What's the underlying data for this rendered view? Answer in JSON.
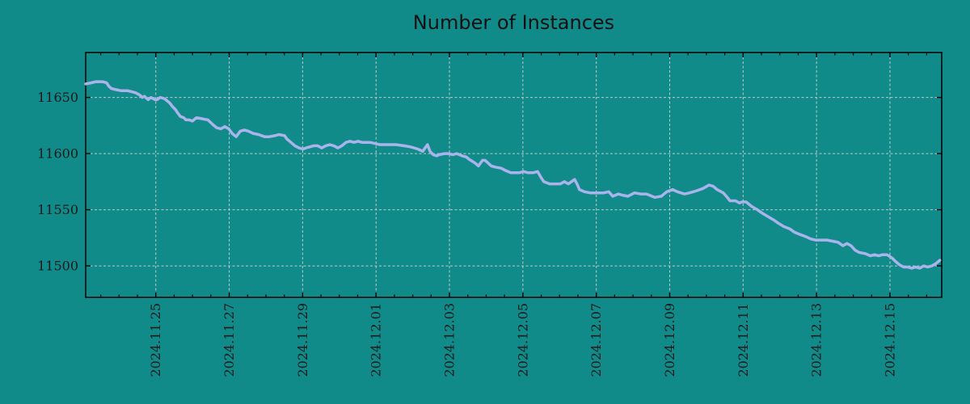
{
  "figure": {
    "background_color": "#118a8a"
  },
  "chart_data": {
    "type": "line",
    "title": "Number of Instances",
    "xlabel": "",
    "ylabel": "",
    "grid": {
      "style": "dashed",
      "color": "#bccaca"
    },
    "colors": {
      "background": "#118a8a",
      "line": "#aab4ec",
      "axis": "#000000",
      "text": "#1a1a1a"
    },
    "x_axis": {
      "unit": "date",
      "tick_labels": [
        "2024.11.25",
        "2024.11.27",
        "2024.11.29",
        "2024.12.01",
        "2024.12.03",
        "2024.12.05",
        "2024.12.07",
        "2024.12.09",
        "2024.12.11",
        "2024.12.13",
        "2024.12.15"
      ],
      "tick_positions_days": [
        0,
        2,
        4,
        6,
        8,
        10,
        12,
        14,
        16,
        18,
        20
      ],
      "minor_tick_step_days": 0.5,
      "range_days": [
        -1.91,
        21.41
      ]
    },
    "y_axis": {
      "ticks": [
        11500,
        11550,
        11600,
        11650
      ],
      "range": [
        11472,
        11690
      ]
    },
    "legend": {
      "visible": false
    },
    "series": [
      {
        "name": "Number of Instances",
        "color": "#aab4ec",
        "points": [
          [
            -1.91,
            11662
          ],
          [
            -1.76,
            11663
          ],
          [
            -1.63,
            11664
          ],
          [
            -1.45,
            11664
          ],
          [
            -1.34,
            11663
          ],
          [
            -1.28,
            11660
          ],
          [
            -1.21,
            11658
          ],
          [
            -1.09,
            11657
          ],
          [
            -0.94,
            11656
          ],
          [
            -0.76,
            11656
          ],
          [
            -0.65,
            11655
          ],
          [
            -0.54,
            11654
          ],
          [
            -0.43,
            11652
          ],
          [
            -0.37,
            11650
          ],
          [
            -0.31,
            11651
          ],
          [
            -0.21,
            11648
          ],
          [
            -0.13,
            11650
          ],
          [
            -0.02,
            11648
          ],
          [
            0.03,
            11648
          ],
          [
            0.12,
            11650
          ],
          [
            0.23,
            11649
          ],
          [
            0.31,
            11647
          ],
          [
            0.38,
            11645
          ],
          [
            0.45,
            11642
          ],
          [
            0.54,
            11639
          ],
          [
            0.6,
            11636
          ],
          [
            0.67,
            11633
          ],
          [
            0.76,
            11632
          ],
          [
            0.82,
            11630
          ],
          [
            0.91,
            11630
          ],
          [
            1.0,
            11629
          ],
          [
            1.11,
            11632
          ],
          [
            1.26,
            11631
          ],
          [
            1.42,
            11630
          ],
          [
            1.55,
            11626
          ],
          [
            1.66,
            11623
          ],
          [
            1.77,
            11622
          ],
          [
            1.88,
            11624
          ],
          [
            1.99,
            11622
          ],
          [
            2.08,
            11618
          ],
          [
            2.19,
            11615
          ],
          [
            2.3,
            11620
          ],
          [
            2.41,
            11621
          ],
          [
            2.52,
            11620
          ],
          [
            2.65,
            11618
          ],
          [
            2.8,
            11617
          ],
          [
            2.96,
            11615
          ],
          [
            3.09,
            11615
          ],
          [
            3.24,
            11616
          ],
          [
            3.35,
            11617
          ],
          [
            3.51,
            11616
          ],
          [
            3.57,
            11613
          ],
          [
            3.68,
            11610
          ],
          [
            3.79,
            11607
          ],
          [
            3.9,
            11605
          ],
          [
            4.01,
            11604
          ],
          [
            4.09,
            11605
          ],
          [
            4.3,
            11607
          ],
          [
            4.41,
            11607
          ],
          [
            4.52,
            11605
          ],
          [
            4.63,
            11607
          ],
          [
            4.74,
            11608
          ],
          [
            4.85,
            11607
          ],
          [
            4.96,
            11605
          ],
          [
            5.07,
            11607
          ],
          [
            5.18,
            11610
          ],
          [
            5.29,
            11611
          ],
          [
            5.4,
            11610
          ],
          [
            5.51,
            11611
          ],
          [
            5.62,
            11610
          ],
          [
            5.73,
            11610
          ],
          [
            5.84,
            11610
          ],
          [
            5.97,
            11609
          ],
          [
            6.1,
            11608
          ],
          [
            6.32,
            11608
          ],
          [
            6.54,
            11608
          ],
          [
            6.76,
            11607
          ],
          [
            6.94,
            11606
          ],
          [
            7.14,
            11604
          ],
          [
            7.27,
            11602
          ],
          [
            7.4,
            11608
          ],
          [
            7.47,
            11602
          ],
          [
            7.56,
            11599
          ],
          [
            7.65,
            11598
          ],
          [
            7.71,
            11599
          ],
          [
            7.87,
            11600
          ],
          [
            7.98,
            11600
          ],
          [
            8.09,
            11599
          ],
          [
            8.2,
            11600
          ],
          [
            8.35,
            11598
          ],
          [
            8.46,
            11597
          ],
          [
            8.53,
            11595
          ],
          [
            8.68,
            11592
          ],
          [
            8.79,
            11589
          ],
          [
            8.9,
            11594
          ],
          [
            8.97,
            11594
          ],
          [
            9.14,
            11589
          ],
          [
            9.25,
            11588
          ],
          [
            9.41,
            11587
          ],
          [
            9.52,
            11585
          ],
          [
            9.67,
            11583
          ],
          [
            9.78,
            11583
          ],
          [
            9.91,
            11583
          ],
          [
            10.02,
            11584
          ],
          [
            10.13,
            11583
          ],
          [
            10.29,
            11583
          ],
          [
            10.4,
            11584
          ],
          [
            10.49,
            11579
          ],
          [
            10.57,
            11575
          ],
          [
            10.73,
            11573
          ],
          [
            10.88,
            11573
          ],
          [
            11.02,
            11573
          ],
          [
            11.13,
            11575
          ],
          [
            11.24,
            11573
          ],
          [
            11.41,
            11577
          ],
          [
            11.49,
            11572
          ],
          [
            11.54,
            11568
          ],
          [
            11.68,
            11566
          ],
          [
            11.83,
            11565
          ],
          [
            12.01,
            11565
          ],
          [
            12.2,
            11565
          ],
          [
            12.34,
            11566
          ],
          [
            12.45,
            11562
          ],
          [
            12.6,
            11564
          ],
          [
            12.71,
            11563
          ],
          [
            12.86,
            11562
          ],
          [
            13.04,
            11565
          ],
          [
            13.22,
            11564
          ],
          [
            13.37,
            11564
          ],
          [
            13.59,
            11561
          ],
          [
            13.77,
            11562
          ],
          [
            13.92,
            11566
          ],
          [
            14.08,
            11568
          ],
          [
            14.21,
            11566
          ],
          [
            14.4,
            11564
          ],
          [
            14.54,
            11565
          ],
          [
            14.74,
            11567
          ],
          [
            14.91,
            11569
          ],
          [
            15.07,
            11572
          ],
          [
            15.18,
            11571
          ],
          [
            15.29,
            11568
          ],
          [
            15.46,
            11565
          ],
          [
            15.57,
            11561
          ],
          [
            15.64,
            11558
          ],
          [
            15.79,
            11558
          ],
          [
            15.9,
            11556
          ],
          [
            15.97,
            11557
          ],
          [
            16.08,
            11557
          ],
          [
            16.23,
            11553
          ],
          [
            16.39,
            11550
          ],
          [
            16.52,
            11547
          ],
          [
            16.67,
            11544
          ],
          [
            16.83,
            11541
          ],
          [
            16.96,
            11538
          ],
          [
            17.11,
            11535
          ],
          [
            17.27,
            11533
          ],
          [
            17.4,
            11530
          ],
          [
            17.55,
            11528
          ],
          [
            17.71,
            11526
          ],
          [
            17.84,
            11524
          ],
          [
            17.97,
            11523
          ],
          [
            18.15,
            11523
          ],
          [
            18.28,
            11523
          ],
          [
            18.44,
            11522
          ],
          [
            18.59,
            11521
          ],
          [
            18.72,
            11518
          ],
          [
            18.83,
            11520
          ],
          [
            18.94,
            11518
          ],
          [
            19.05,
            11514
          ],
          [
            19.16,
            11512
          ],
          [
            19.32,
            11511
          ],
          [
            19.47,
            11509
          ],
          [
            19.58,
            11510
          ],
          [
            19.69,
            11509
          ],
          [
            19.8,
            11510
          ],
          [
            19.91,
            11510
          ],
          [
            19.97,
            11509
          ],
          [
            20.06,
            11507
          ],
          [
            20.15,
            11504
          ],
          [
            20.26,
            11501
          ],
          [
            20.37,
            11499
          ],
          [
            20.48,
            11499
          ],
          [
            20.59,
            11498
          ],
          [
            20.7,
            11499
          ],
          [
            20.81,
            11498
          ],
          [
            20.92,
            11500
          ],
          [
            21.03,
            11499
          ],
          [
            21.14,
            11500
          ],
          [
            21.25,
            11502
          ],
          [
            21.36,
            11505
          ]
        ]
      }
    ]
  }
}
